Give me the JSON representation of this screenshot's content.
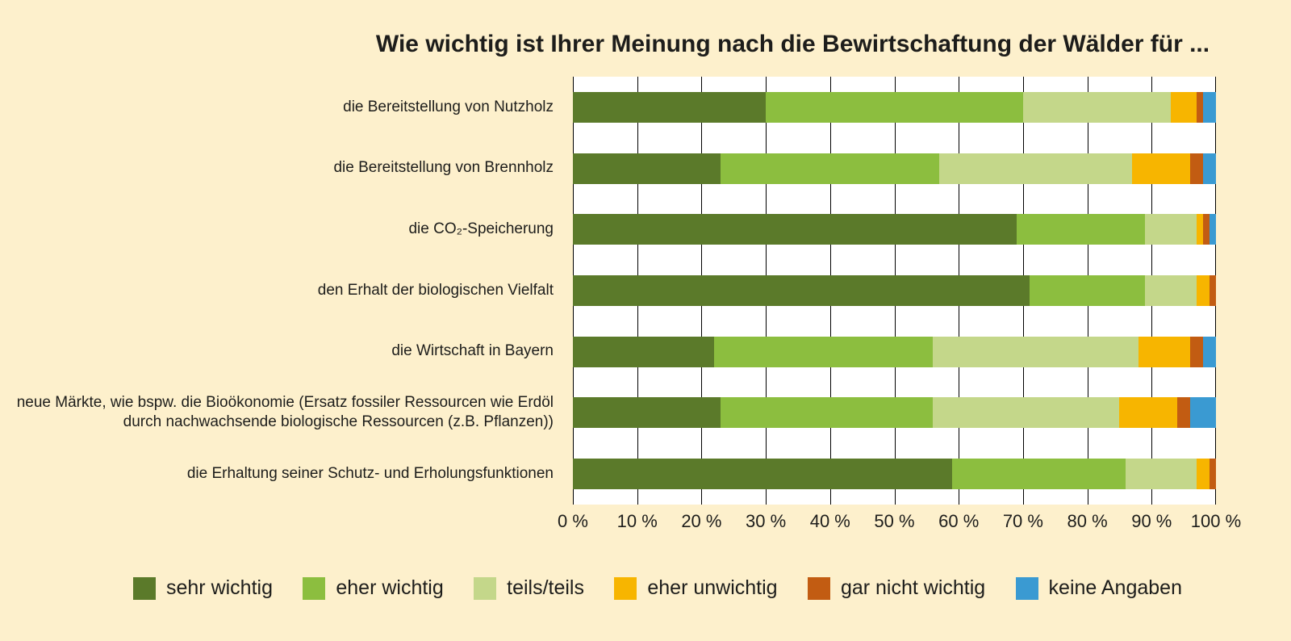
{
  "title": "Wie wichtig ist Ihrer Meinung nach die Bewirtschaftung der Wälder für ...",
  "colors": {
    "background": "#fdf0cc",
    "plot_background": "#ffffff",
    "gridline": "#000000",
    "text": "#1d1d1b"
  },
  "chart_data": {
    "type": "bar",
    "orientation": "horizontal",
    "stacked": true,
    "title": "Wie wichtig ist Ihrer Meinung nach die Bewirtschaftung der Wälder für ...",
    "xlabel": "",
    "ylabel": "",
    "xlim": [
      0,
      100
    ],
    "grid": true,
    "legend_position": "bottom",
    "x_ticks": [
      "0 %",
      "10 %",
      "20 %",
      "30 %",
      "40 %",
      "50 %",
      "60 %",
      "70 %",
      "80 %",
      "90 %",
      "100 %"
    ],
    "categories": [
      "die Bereitstellung von Nutzholz",
      "die Bereitstellung von Brennholz",
      "die CO₂-Speicherung",
      "den Erhalt der biologischen Vielfalt",
      "die Wirtschaft in Bayern",
      "neue Märkte, wie bspw. die Bioökonomie (Ersatz fossiler Ressourcen wie Erdöl durch nachwachsende biologische Ressourcen (z.B. Pflanzen))",
      "die Erhaltung seiner Schutz- und Erholungsfunktionen"
    ],
    "series": [
      {
        "name": "sehr wichtig",
        "color": "#5b7a2a",
        "values": [
          30,
          23,
          69,
          71,
          22,
          23,
          59
        ]
      },
      {
        "name": "eher wichtig",
        "color": "#8cbe3f",
        "values": [
          40,
          34,
          20,
          18,
          34,
          33,
          27
        ]
      },
      {
        "name": "teils/teils",
        "color": "#c4d78a",
        "values": [
          23,
          30,
          8,
          8,
          32,
          29,
          11
        ]
      },
      {
        "name": "eher unwichtig",
        "color": "#f7b500",
        "values": [
          4,
          9,
          1,
          2,
          8,
          9,
          2
        ]
      },
      {
        "name": "gar nicht wichtig",
        "color": "#c25c12",
        "values": [
          1,
          2,
          1,
          1,
          2,
          2,
          1
        ]
      },
      {
        "name": "keine Angaben",
        "color": "#3a9ad2",
        "values": [
          2,
          2,
          1,
          0,
          2,
          4,
          0
        ]
      }
    ]
  },
  "legend": {
    "items": [
      "sehr wichtig",
      "eher wichtig",
      "teils/teils",
      "eher unwichtig",
      "gar nicht wichtig",
      "keine Angaben"
    ]
  }
}
